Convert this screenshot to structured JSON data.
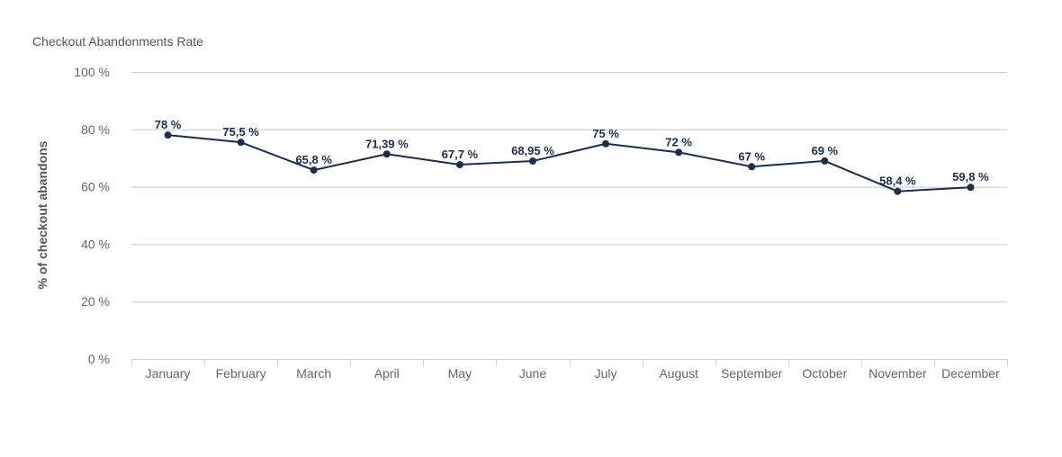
{
  "chart_data": {
    "type": "line",
    "title": "Checkout Abandonments Rate",
    "xlabel": "",
    "ylabel": "% of checkout abandons",
    "ylim": [
      0,
      100
    ],
    "yticks": [
      "0 %",
      "20 %",
      "40 %",
      "60 %",
      "80 %",
      "100 %"
    ],
    "ytick_values": [
      0,
      20,
      40,
      60,
      80,
      100
    ],
    "grid": true,
    "categories": [
      "January",
      "February",
      "March",
      "April",
      "May",
      "June",
      "July",
      "August",
      "September",
      "October",
      "November",
      "December"
    ],
    "series": [
      {
        "values": [
          78,
          75.5,
          65.8,
          71.39,
          67.7,
          68.95,
          75,
          72,
          67,
          69,
          58.4,
          59.8
        ],
        "labels": [
          "78 %",
          "75,5 %",
          "65,8 %",
          "71,39 %",
          "67,7 %",
          "68,95 %",
          "75 %",
          "72 %",
          "67 %",
          "69 %",
          "58,4 %",
          "59,8 %"
        ],
        "color": "#1b2d4f"
      }
    ]
  }
}
